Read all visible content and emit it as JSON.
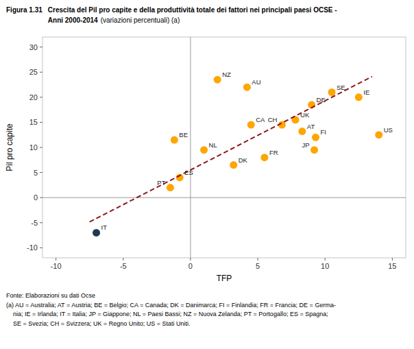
{
  "chart_data": {
    "type": "scatter",
    "figure_number": "Figura 1.31",
    "title": "Crescita del Pil pro capite e della produttività totale dei fattori nei principali paesi OCSE -",
    "subtitle_bold": "Anni 2000-2014",
    "subtitle": "(variazioni percentuali) (a)",
    "xlabel": "TFP",
    "ylabel": "Pil pro capite",
    "series": [
      {
        "type": "scatter",
        "labels": [
          "IT",
          "PT",
          "ES",
          "BE",
          "NL",
          "NZ",
          "AU",
          "CA",
          "DK",
          "FR",
          "CH",
          "UK",
          "AT",
          "FI",
          "JP",
          "DE",
          "SE",
          "IE",
          "US"
        ],
        "x": [
          -7.0,
          -1.5,
          -0.8,
          -1.2,
          1.0,
          2.0,
          4.2,
          4.5,
          3.2,
          5.5,
          6.8,
          7.8,
          8.3,
          9.3,
          9.2,
          9.0,
          10.5,
          12.5,
          14.0
        ],
        "values": [
          -7.0,
          2.0,
          4.0,
          11.5,
          9.5,
          23.5,
          22.0,
          14.5,
          6.5,
          8.0,
          14.5,
          15.5,
          13.2,
          12.0,
          9.5,
          18.5,
          21.0,
          20.0,
          12.5
        ],
        "colors": [
          "#1e3a52",
          "#FFA500",
          "#FFA500",
          "#FFA500",
          "#FFA500",
          "#FFA500",
          "#FFA500",
          "#FFA500",
          "#FFA500",
          "#FFA500",
          "#FFA500",
          "#FFA500",
          "#FFA500",
          "#FFA500",
          "#FFA500",
          "#FFA500",
          "#FFA500",
          "#FFA500",
          "#FFA500"
        ]
      },
      {
        "type": "line",
        "x": [
          -7.5,
          13.5
        ],
        "values": [
          -4.85,
          24.13
        ],
        "color": "#8B1A1A",
        "line_style": "dashed"
      }
    ],
    "xlim": [
      -11,
      16
    ],
    "ylim": [
      -12,
      32
    ],
    "xticks": [
      -10,
      -5,
      0,
      5,
      10,
      15
    ],
    "yticks": [
      -10,
      -5,
      0,
      5,
      10,
      15,
      20,
      25,
      30
    ],
    "grid": false,
    "footer": [
      "Fonte: Elaborazioni su dati Ocse",
      "(a) AU = Australia; AT = Austria; BE = Belgio; CA = Canada; DK = Danimarca; FI = Finlandia; FR = Francia; DE = Germa-",
      "    nia; IE = Irlanda; IT = Italia; JP = Giappone; NL = Paesi Bassi; NZ = Nuova Zelanda; PT = Portogallo; ES = Spagna;",
      "    SE = Svezia; CH = Svizzera; UK = Regno Unito; US = Stati Uniti."
    ]
  }
}
